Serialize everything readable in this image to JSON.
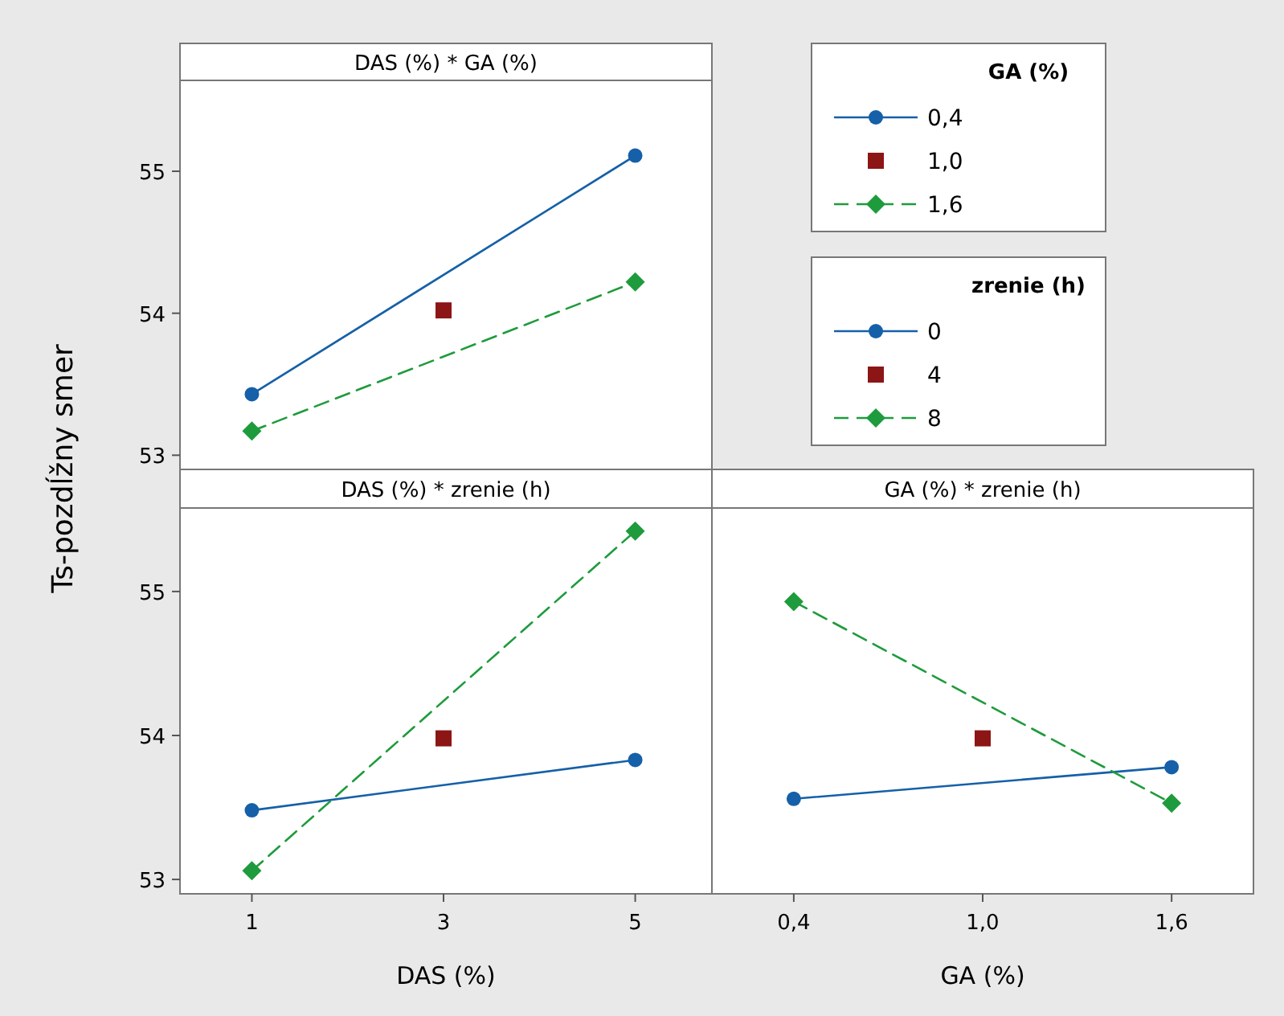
{
  "chart_data": [
    {
      "type": "line",
      "title": "DAS (%) * GA (%)",
      "ylabel": "Ts-pozdĺžny smer",
      "legend_title": "GA (%)",
      "legend": "right",
      "tick_labels": "y",
      "grid": false,
      "xlim": [
        0.25,
        5.8
      ],
      "xticks": [
        1,
        3,
        5
      ],
      "ylim": [
        52.9,
        55.64
      ],
      "yticks": [
        53,
        54,
        55
      ],
      "series": [
        {
          "name": "0,4",
          "color": "#1560a8",
          "marker": "circle",
          "line_style": "solid",
          "x": [
            1,
            5
          ],
          "values": [
            53.43,
            55.11
          ]
        },
        {
          "name": "1,0",
          "color": "#8c1515",
          "marker": "square",
          "line_style": "none",
          "x": [
            3
          ],
          "values": [
            54.02
          ]
        },
        {
          "name": "1,6",
          "color": "#1e9b3c",
          "marker": "diamond",
          "line_style": "dashed",
          "x": [
            1,
            5
          ],
          "values": [
            53.17,
            54.22
          ]
        }
      ]
    },
    {
      "type": "line",
      "title": "DAS (%) * zrenie (h)",
      "xlabel": "DAS (%)",
      "legend_title": "zrenie (h)",
      "legend": "top right",
      "grid": false,
      "xlim": [
        0.25,
        5.8
      ],
      "xticks": [
        1,
        3,
        5
      ],
      "ylim": [
        52.9,
        55.58
      ],
      "yticks": [
        53,
        54,
        55
      ],
      "series": [
        {
          "name": "0",
          "color": "#1560a8",
          "marker": "circle",
          "line_style": "solid",
          "x": [
            1,
            5
          ],
          "values": [
            53.48,
            53.83
          ]
        },
        {
          "name": "4",
          "color": "#8c1515",
          "marker": "square",
          "line_style": "none",
          "x": [
            3
          ],
          "values": [
            53.98
          ]
        },
        {
          "name": "8",
          "color": "#1e9b3c",
          "marker": "diamond",
          "line_style": "dashed",
          "x": [
            1,
            5
          ],
          "values": [
            53.06,
            55.42
          ]
        }
      ]
    },
    {
      "type": "line",
      "title": "GA (%) * zrenie (h)",
      "xlabel": "GA (%)",
      "tick_labels": "x",
      "grid": false,
      "xlim": [
        0.14,
        1.86
      ],
      "xticks": [
        {
          "value": 0.4,
          "label": "0,4"
        },
        {
          "value": 1.0,
          "label": "1,0"
        },
        {
          "value": 1.6,
          "label": "1,6"
        }
      ],
      "ylim": [
        52.9,
        55.58
      ],
      "yticks": [
        53,
        54,
        55
      ],
      "series": [
        {
          "color": "#1560a8",
          "marker": "circle",
          "line_style": "solid",
          "x": [
            0.4,
            1.6
          ],
          "values": [
            53.56,
            53.78
          ]
        },
        {
          "color": "#8c1515",
          "marker": "square",
          "line_style": "none",
          "x": [
            1.0
          ],
          "values": [
            53.98
          ]
        },
        {
          "color": "#1e9b3c",
          "marker": "diamond",
          "line_style": "dashed",
          "x": [
            0.4,
            1.6
          ],
          "values": [
            54.93,
            53.53
          ]
        }
      ]
    }
  ]
}
